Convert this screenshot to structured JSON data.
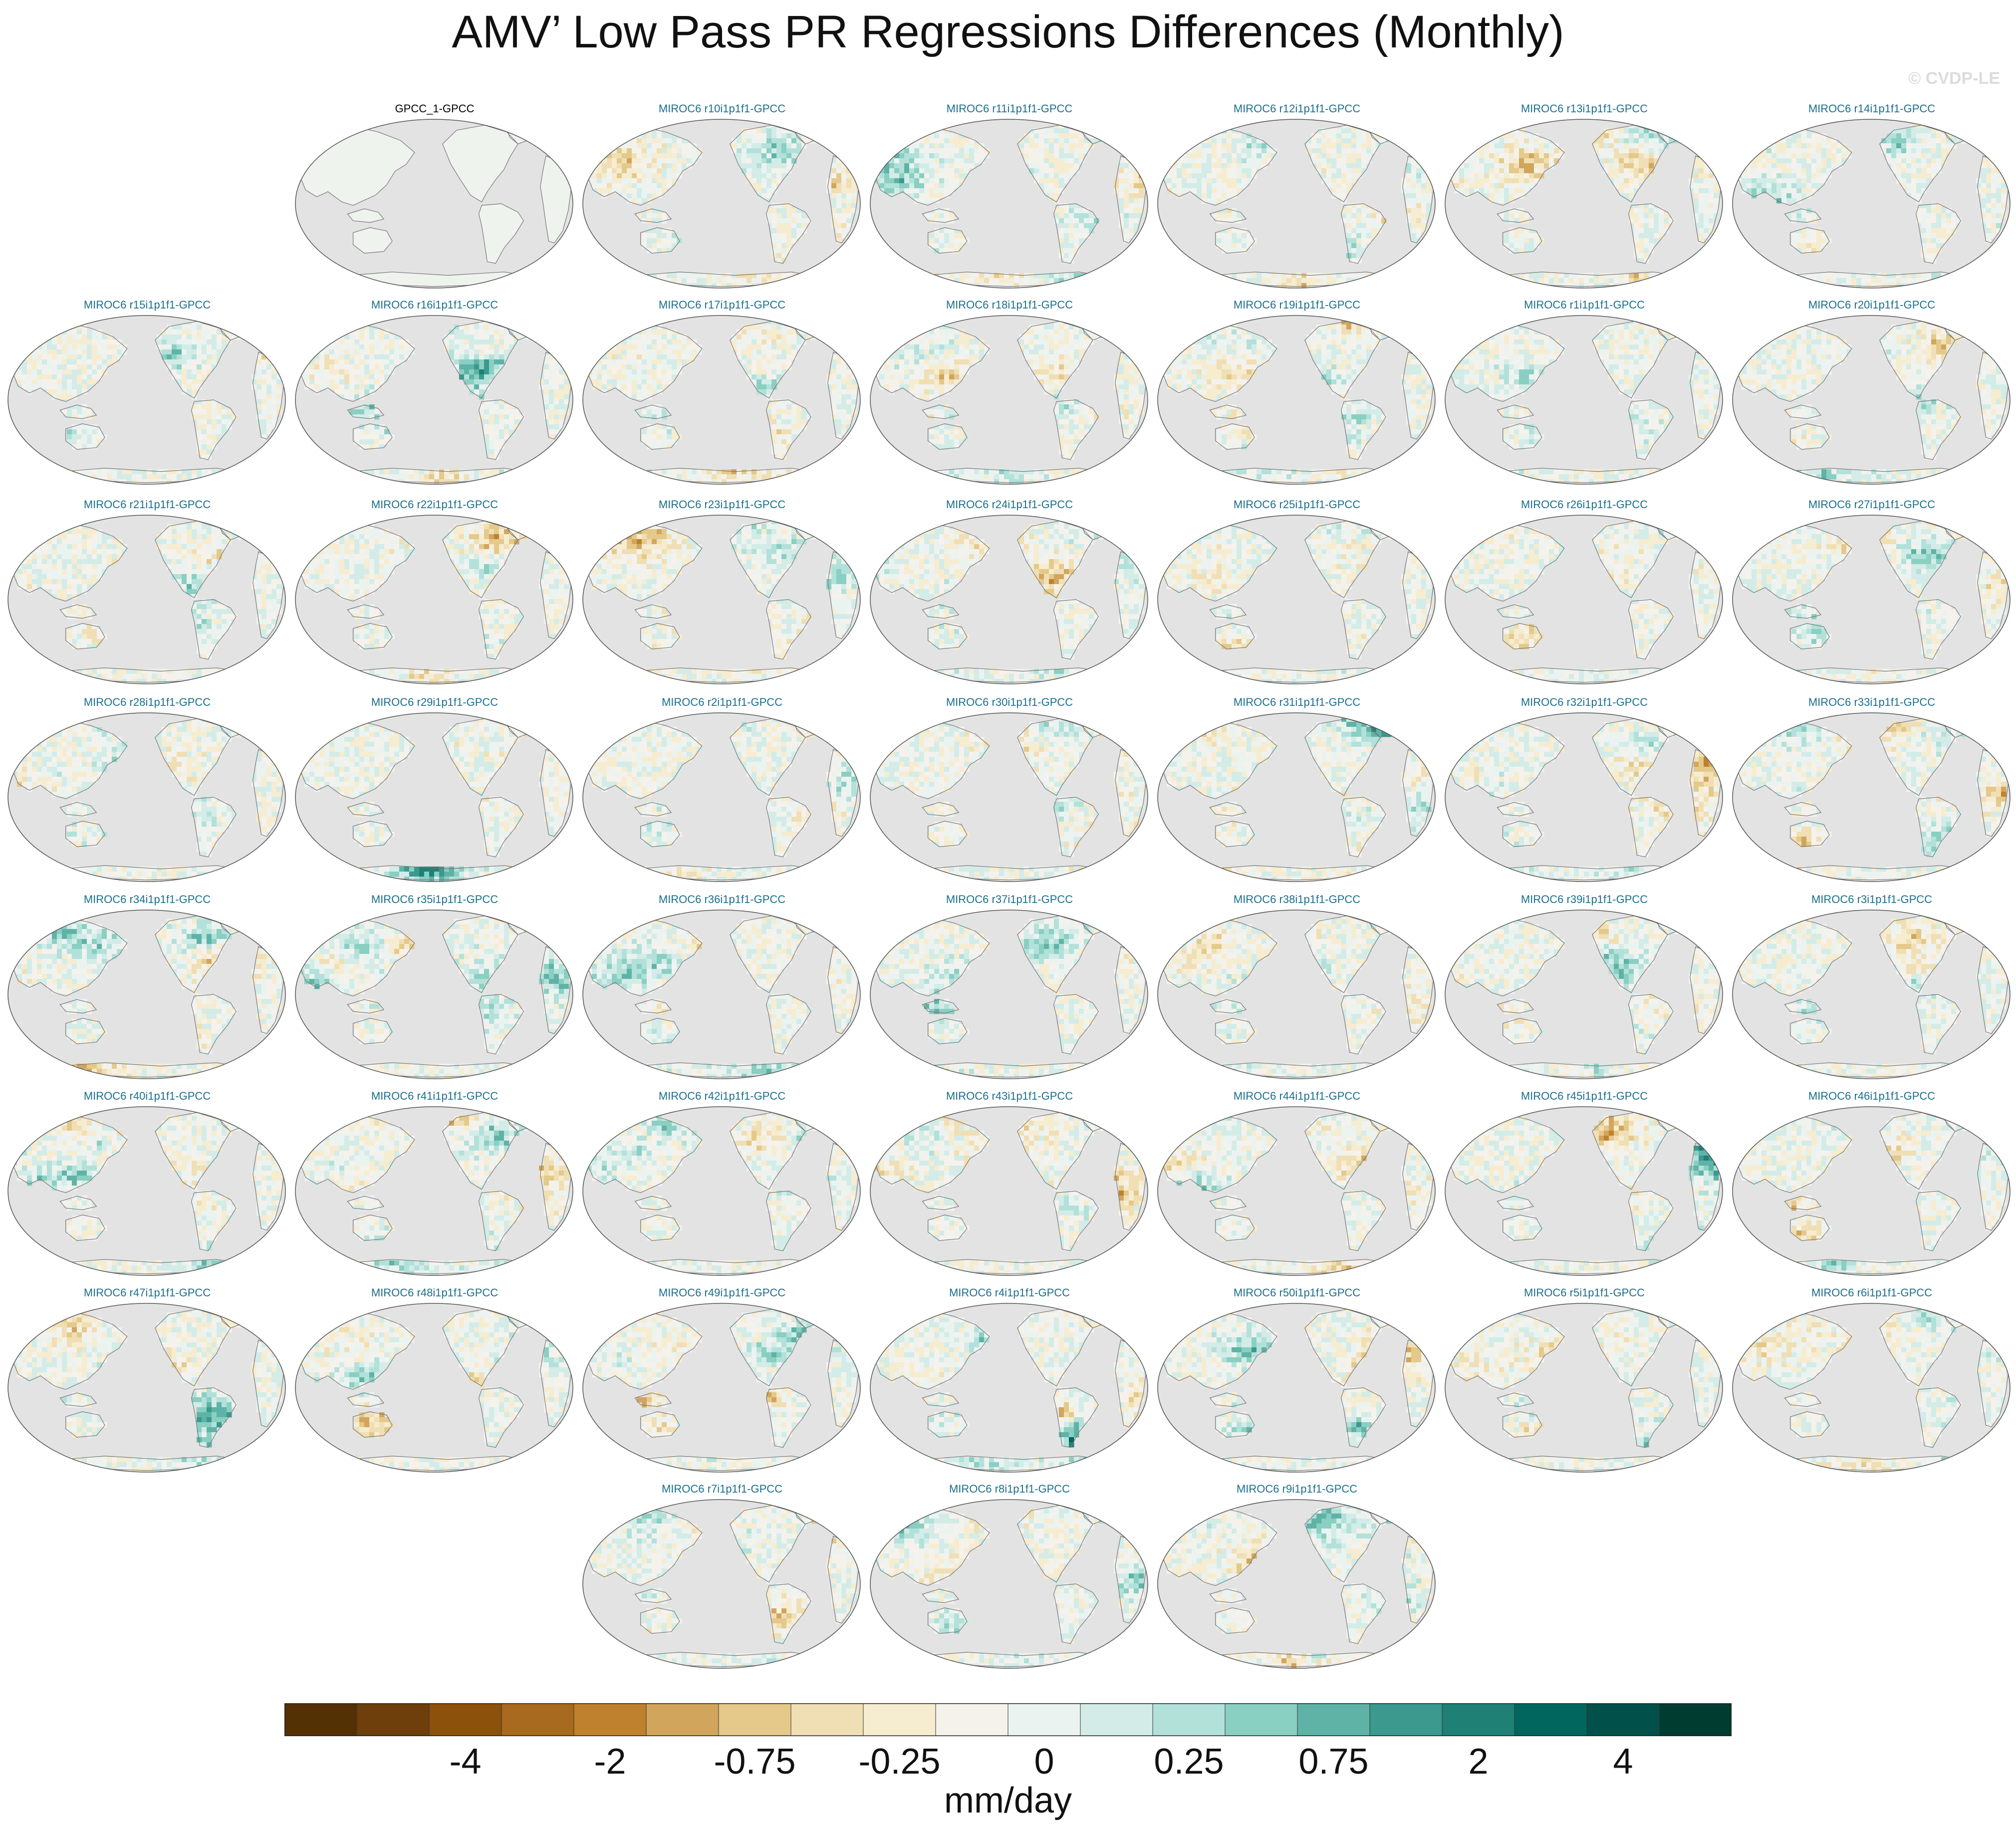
{
  "title": "AMV’ Low Pass PR Regressions Differences (Monthly)",
  "watermark": "© CVDP-LE",
  "colors": {
    "ocean": "#e3e3e3",
    "panel_title": "#1a6e8c",
    "obs_land": "#eef3ee"
  },
  "chart_data": {
    "type": "heatmap",
    "projection": "robinson-pacific-centered",
    "units": "mm/day",
    "panels": [
      {
        "label": "GPCC_1-GPCC",
        "obs": true
      },
      {
        "label": "MIROC6 r10i1p1f1-GPCC"
      },
      {
        "label": "MIROC6 r11i1p1f1-GPCC"
      },
      {
        "label": "MIROC6 r12i1p1f1-GPCC"
      },
      {
        "label": "MIROC6 r13i1p1f1-GPCC"
      },
      {
        "label": "MIROC6 r14i1p1f1-GPCC"
      },
      {
        "label": "MIROC6 r15i1p1f1-GPCC"
      },
      {
        "label": "MIROC6 r16i1p1f1-GPCC"
      },
      {
        "label": "MIROC6 r17i1p1f1-GPCC"
      },
      {
        "label": "MIROC6 r18i1p1f1-GPCC"
      },
      {
        "label": "MIROC6 r19i1p1f1-GPCC"
      },
      {
        "label": "MIROC6 r1i1p1f1-GPCC"
      },
      {
        "label": "MIROC6 r20i1p1f1-GPCC"
      },
      {
        "label": "MIROC6 r21i1p1f1-GPCC"
      },
      {
        "label": "MIROC6 r22i1p1f1-GPCC"
      },
      {
        "label": "MIROC6 r23i1p1f1-GPCC"
      },
      {
        "label": "MIROC6 r24i1p1f1-GPCC"
      },
      {
        "label": "MIROC6 r25i1p1f1-GPCC"
      },
      {
        "label": "MIROC6 r26i1p1f1-GPCC"
      },
      {
        "label": "MIROC6 r27i1p1f1-GPCC"
      },
      {
        "label": "MIROC6 r28i1p1f1-GPCC"
      },
      {
        "label": "MIROC6 r29i1p1f1-GPCC"
      },
      {
        "label": "MIROC6 r2i1p1f1-GPCC"
      },
      {
        "label": "MIROC6 r30i1p1f1-GPCC"
      },
      {
        "label": "MIROC6 r31i1p1f1-GPCC"
      },
      {
        "label": "MIROC6 r32i1p1f1-GPCC"
      },
      {
        "label": "MIROC6 r33i1p1f1-GPCC"
      },
      {
        "label": "MIROC6 r34i1p1f1-GPCC"
      },
      {
        "label": "MIROC6 r35i1p1f1-GPCC"
      },
      {
        "label": "MIROC6 r36i1p1f1-GPCC"
      },
      {
        "label": "MIROC6 r37i1p1f1-GPCC"
      },
      {
        "label": "MIROC6 r38i1p1f1-GPCC"
      },
      {
        "label": "MIROC6 r39i1p1f1-GPCC"
      },
      {
        "label": "MIROC6 r3i1p1f1-GPCC"
      },
      {
        "label": "MIROC6 r40i1p1f1-GPCC"
      },
      {
        "label": "MIROC6 r41i1p1f1-GPCC"
      },
      {
        "label": "MIROC6 r42i1p1f1-GPCC"
      },
      {
        "label": "MIROC6 r43i1p1f1-GPCC"
      },
      {
        "label": "MIROC6 r44i1p1f1-GPCC"
      },
      {
        "label": "MIROC6 r45i1p1f1-GPCC"
      },
      {
        "label": "MIROC6 r46i1p1f1-GPCC"
      },
      {
        "label": "MIROC6 r47i1p1f1-GPCC"
      },
      {
        "label": "MIROC6 r48i1p1f1-GPCC"
      },
      {
        "label": "MIROC6 r49i1p1f1-GPCC"
      },
      {
        "label": "MIROC6 r4i1p1f1-GPCC"
      },
      {
        "label": "MIROC6 r50i1p1f1-GPCC"
      },
      {
        "label": "MIROC6 r5i1p1f1-GPCC"
      },
      {
        "label": "MIROC6 r6i1p1f1-GPCC"
      },
      {
        "label": "MIROC6 r7i1p1f1-GPCC"
      },
      {
        "label": "MIROC6 r8i1p1f1-GPCC"
      },
      {
        "label": "MIROC6 r9i1p1f1-GPCC"
      }
    ],
    "colorbar": {
      "colors": [
        "#543005",
        "#6e3f0a",
        "#8c510a",
        "#a86a1e",
        "#bf812d",
        "#d2a55d",
        "#e4c98a",
        "#f0dfb4",
        "#f6ecd0",
        "#f5f2ec",
        "#ebf3f1",
        "#d3ece8",
        "#b2e1da",
        "#89cfc2",
        "#5fb3a6",
        "#3b998e",
        "#1f8075",
        "#01665e",
        "#02504a",
        "#003c30"
      ],
      "tick_labels": [
        "-4",
        "-2",
        "-0.75",
        "-0.25",
        "0",
        "0.25",
        "0.75",
        "2",
        "4"
      ],
      "tick_boundaries": [
        2,
        4,
        6,
        8,
        10,
        12,
        14,
        16,
        18
      ]
    }
  }
}
